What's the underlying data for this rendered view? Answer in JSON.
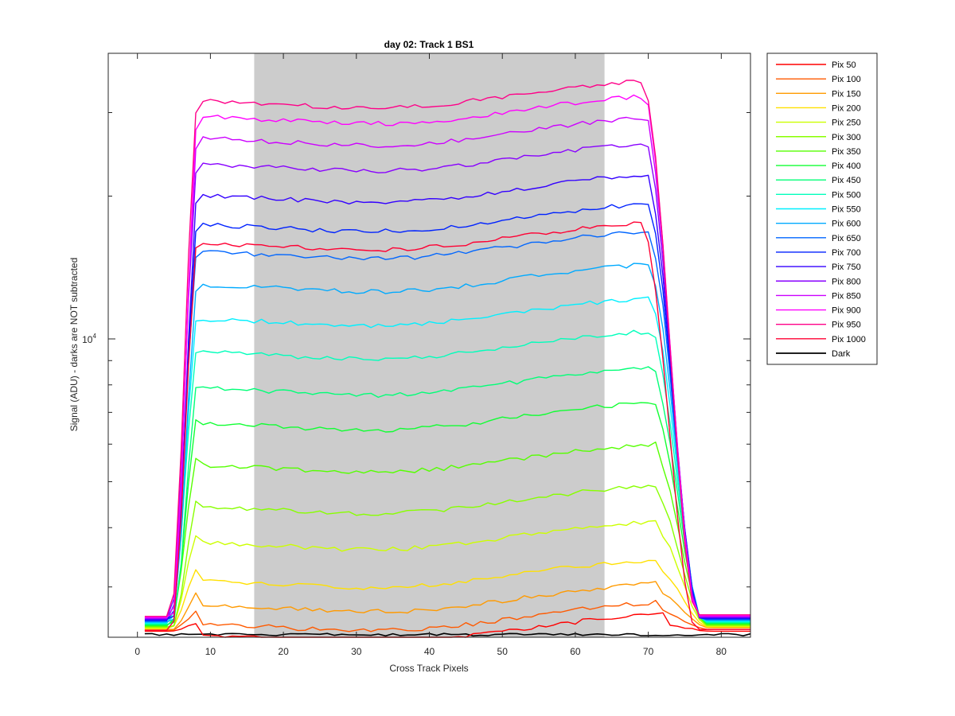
{
  "chart_data": {
    "type": "line",
    "title": "day 02: Track 1  BS1",
    "xlabel": "Cross Track Pixels",
    "ylabel": "Signal (ADU) - darks are NOT subtracted",
    "xlim": [
      -4,
      84
    ],
    "ylim": [
      2350,
      40000
    ],
    "yscale": "log",
    "x_ticks": [
      0,
      10,
      20,
      30,
      40,
      50,
      60,
      70,
      80
    ],
    "y_tick_label": {
      "base": "10",
      "exponent": "4",
      "value": 10000
    },
    "y_minor_ticks": [
      3000,
      4000,
      5000,
      6000,
      7000,
      8000,
      9000,
      20000,
      30000
    ],
    "shaded_region": {
      "x": [
        16,
        64
      ],
      "color": "#cccccc"
    },
    "legend_position": "outside-right",
    "grid": false,
    "series": [
      {
        "name": "Pix 50",
        "color": "#ff0000",
        "plateau": 2510,
        "start": 2420,
        "end": 2420
      },
      {
        "name": "Pix 100",
        "color": "#ff5a00",
        "plateau": 2660,
        "start": 2430,
        "end": 2440
      },
      {
        "name": "Pix 150",
        "color": "#ff9a00",
        "plateau": 2920,
        "start": 2440,
        "end": 2460
      },
      {
        "name": "Pix 200",
        "color": "#ffe000",
        "plateau": 3280,
        "start": 2450,
        "end": 2470
      },
      {
        "name": "Pix 250",
        "color": "#ccff00",
        "plateau": 3950,
        "start": 2460,
        "end": 2480
      },
      {
        "name": "Pix 300",
        "color": "#88ff00",
        "plateau": 4700,
        "start": 2470,
        "end": 2490
      },
      {
        "name": "Pix 350",
        "color": "#55ff00",
        "plateau": 5750,
        "start": 2480,
        "end": 2500
      },
      {
        "name": "Pix 400",
        "color": "#11ff33",
        "plateau": 7050,
        "start": 2490,
        "end": 2510
      },
      {
        "name": "Pix 450",
        "color": "#00ff77",
        "plateau": 8350,
        "start": 2500,
        "end": 2520
      },
      {
        "name": "Pix 500",
        "color": "#00ffbb",
        "plateau": 9950,
        "start": 2510,
        "end": 2530
      },
      {
        "name": "Pix 550",
        "color": "#00f0ff",
        "plateau": 11700,
        "start": 2520,
        "end": 2540
      },
      {
        "name": "Pix 600",
        "color": "#00aaff",
        "plateau": 13800,
        "start": 2530,
        "end": 2550
      },
      {
        "name": "Pix 650",
        "color": "#0066ff",
        "plateau": 16200,
        "start": 2540,
        "end": 2560
      },
      {
        "name": "Pix 700",
        "color": "#0022ff",
        "plateau": 18500,
        "start": 2550,
        "end": 2570
      },
      {
        "name": "Pix 750",
        "color": "#3300ff",
        "plateau": 21300,
        "start": 2560,
        "end": 2580
      },
      {
        "name": "Pix 800",
        "color": "#8800ff",
        "plateau": 24800,
        "start": 2570,
        "end": 2590
      },
      {
        "name": "Pix 850",
        "color": "#cc00ff",
        "plateau": 28100,
        "start": 2580,
        "end": 2600
      },
      {
        "name": "Pix 900",
        "color": "#ff00ff",
        "plateau": 31200,
        "start": 2590,
        "end": 2610
      },
      {
        "name": "Pix 950",
        "color": "#ff0088",
        "plateau": 33700,
        "start": 2600,
        "end": 2620
      },
      {
        "name": "Pix 1000",
        "color": "#ff0033",
        "plateau": 16900,
        "start": 2430,
        "end": 2440
      },
      {
        "name": "Dark",
        "color": "#000000",
        "plateau": 2380,
        "start": 2380,
        "end": 2380
      }
    ]
  }
}
